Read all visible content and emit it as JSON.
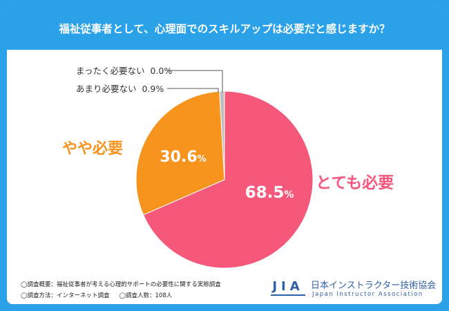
{
  "title": "福祉従事者として、心理面でのスキルアップは必要だと感じますか？",
  "chart_data": {
    "type": "pie",
    "slices": [
      {
        "label": "とても必要",
        "value": 68.5,
        "display": "68.5",
        "unit": "%",
        "color": "#f5587a"
      },
      {
        "label": "やや必要",
        "value": 30.6,
        "display": "30.6",
        "unit": "%",
        "color": "#f7941d"
      },
      {
        "label": "あまり必要ない",
        "value": 0.9,
        "display": "0.9%",
        "color": "#bfbfbf"
      },
      {
        "label": "まったく必要ない",
        "value": 0.0,
        "display": "0.0%",
        "color": "#9e9e9e"
      }
    ]
  },
  "footer": {
    "survey_overview": "◯調査概要：福祉従事者が考える心理的サポートの必要性に関する実態調査",
    "survey_method": "◯調査方法：インターネット調査",
    "respondents": "◯調査人数：108人"
  },
  "logo": {
    "mark": "JIA",
    "name": "日本インストラクター技術協会",
    "subtitle": "Japan Instructor Association"
  }
}
